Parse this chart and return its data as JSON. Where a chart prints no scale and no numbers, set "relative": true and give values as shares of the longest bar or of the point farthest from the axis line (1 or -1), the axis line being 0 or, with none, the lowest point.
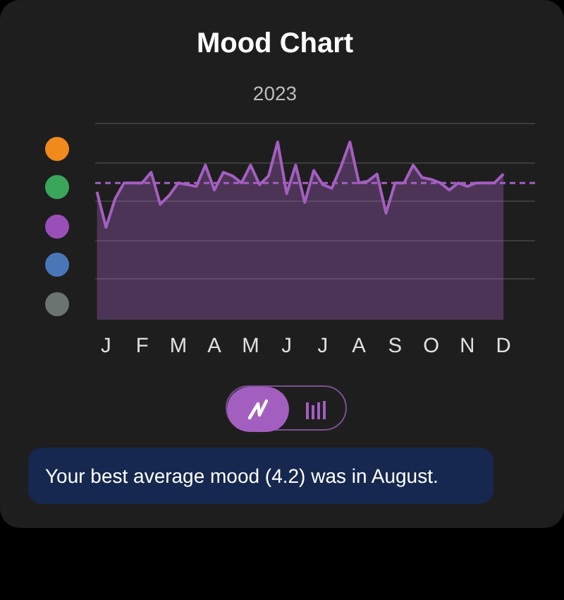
{
  "chart_data": {
    "type": "area",
    "title": "Mood Chart",
    "subtitle": "2023",
    "relative": true,
    "grid": "y",
    "categories": [
      null,
      "J",
      null,
      null,
      null,
      "F",
      null,
      null,
      null,
      "M",
      null,
      null,
      null,
      "A",
      null,
      null,
      null,
      "M",
      null,
      null,
      null,
      "J",
      null,
      null,
      null,
      "J",
      null,
      null,
      null,
      "A",
      null,
      null,
      null,
      "S",
      null,
      null,
      null,
      "O",
      null,
      null,
      null,
      "N",
      null,
      null,
      null,
      "D"
    ],
    "series": [
      {
        "color": "#a35fc0",
        "values": [
          0.72,
          0.52,
          0.68,
          0.77,
          0.77,
          0.77,
          0.83,
          0.65,
          0.7,
          0.77,
          0.76,
          0.75,
          0.87,
          0.73,
          0.83,
          0.81,
          0.77,
          0.87,
          0.76,
          0.81,
          1.0,
          0.71,
          0.87,
          0.66,
          0.84,
          0.76,
          0.74,
          0.86,
          1.0,
          0.77,
          0.78,
          0.82,
          0.6,
          0.77,
          0.77,
          0.87,
          0.8,
          0.79,
          0.77,
          0.73,
          0.77,
          0.75,
          0.77,
          0.77,
          0.77,
          0.82
        ]
      }
    ],
    "ref_lines": [
      {
        "axis": "y",
        "value": 0.77,
        "color": "#a35fc0",
        "line_style": "dashed"
      }
    ],
    "tick_labels": "x",
    "annotations": [
      "Your best average mood (4.2) was in August."
    ]
  }
}
